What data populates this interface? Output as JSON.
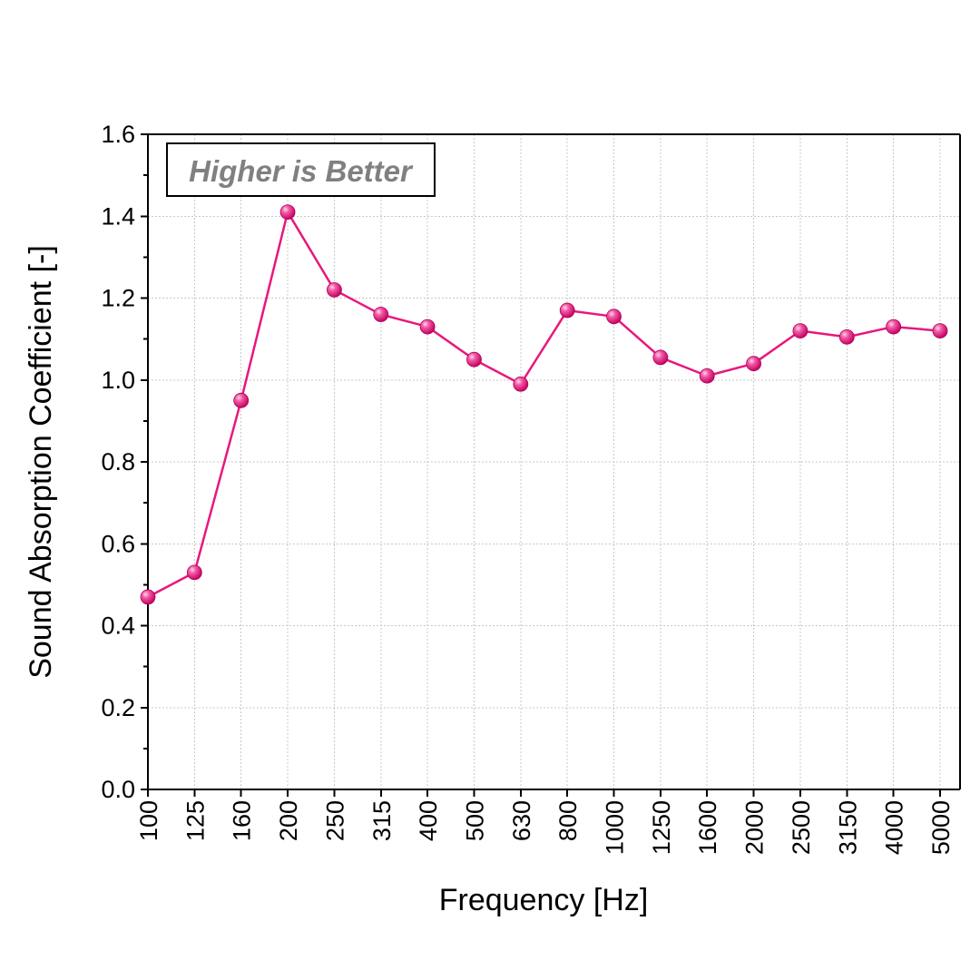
{
  "chart_data": {
    "type": "line",
    "xlabel": "Frequency [Hz]",
    "ylabel": "Sound Absorption Coefficient [-]",
    "categories": [
      "100",
      "125",
      "160",
      "200",
      "250",
      "315",
      "400",
      "500",
      "630",
      "800",
      "1000",
      "1250",
      "1600",
      "2000",
      "2500",
      "3150",
      "4000",
      "5000"
    ],
    "yticks": [
      "0.0",
      "0.2",
      "0.4",
      "0.6",
      "0.8",
      "1.0",
      "1.2",
      "1.4",
      "1.6"
    ],
    "ylim": [
      0,
      1.6
    ],
    "grid": true,
    "annotation": "Higher is Better",
    "series": [
      {
        "color": "#e8177d",
        "marker": "sphere",
        "values": [
          0.47,
          0.53,
          0.95,
          1.41,
          1.22,
          1.16,
          1.13,
          1.05,
          0.99,
          1.17,
          1.155,
          1.055,
          1.01,
          1.04,
          1.12,
          1.105,
          1.13,
          1.12
        ]
      }
    ],
    "colors": {
      "annotation_text": "#808080",
      "annotation_border": "#000000"
    }
  }
}
